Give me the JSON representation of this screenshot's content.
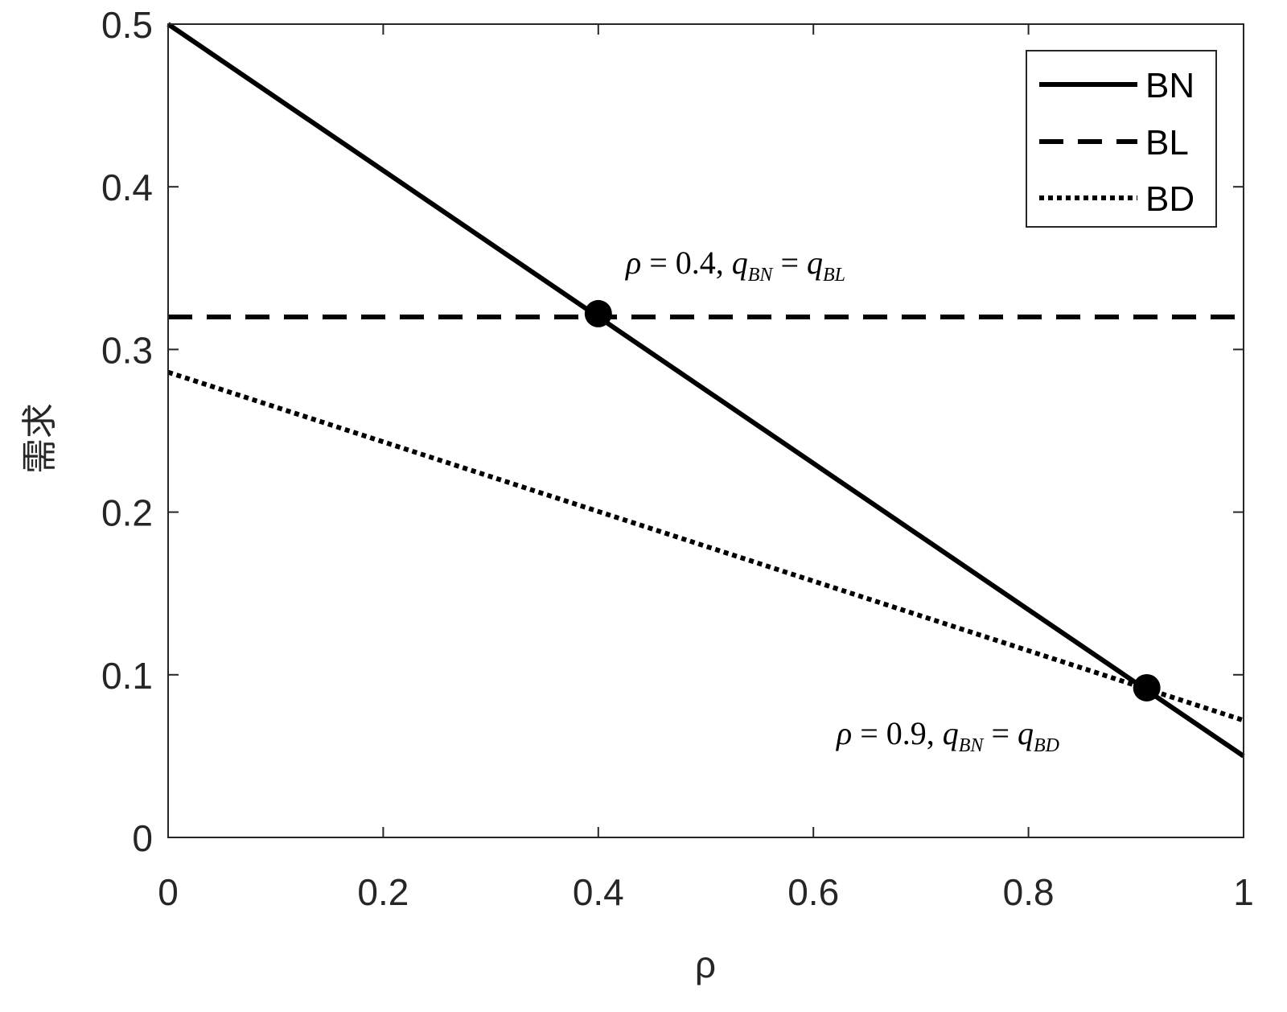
{
  "chart_data": {
    "type": "line",
    "xlabel": "ρ",
    "ylabel": "需求",
    "xlim": [
      0,
      1
    ],
    "ylim": [
      0,
      0.5
    ],
    "xticks": [
      0,
      0.2,
      0.4,
      0.6,
      0.8,
      1
    ],
    "yticks": [
      0,
      0.1,
      0.2,
      0.3,
      0.4,
      0.5
    ],
    "xtick_labels": [
      "0",
      "0.2",
      "0.4",
      "0.6",
      "0.8",
      "1"
    ],
    "ytick_labels": [
      "0",
      "0.1",
      "0.2",
      "0.3",
      "0.4",
      "0.5"
    ],
    "grid": false,
    "legend_position": "top-right",
    "series": [
      {
        "name": "BN",
        "style": "solid",
        "x": [
          0,
          1
        ],
        "y": [
          0.5,
          0.05
        ]
      },
      {
        "name": "BL",
        "style": "dashed",
        "x": [
          0,
          1
        ],
        "y": [
          0.32,
          0.32
        ]
      },
      {
        "name": "BD",
        "style": "dotted",
        "x": [
          0,
          1
        ],
        "y": [
          0.286,
          0.072
        ]
      }
    ],
    "markers": [
      {
        "x": 0.4,
        "y": 0.322
      },
      {
        "x": 0.91,
        "y": 0.092
      }
    ],
    "annotations": [
      {
        "rho": "ρ",
        "eq": " = 0.4, ",
        "q1": "q",
        "sub1": "BN",
        "eq2": " = ",
        "q2": "q",
        "sub2": "BL"
      },
      {
        "rho": "ρ",
        "eq": " = 0.9, ",
        "q1": "q",
        "sub1": "BN",
        "eq2": " = ",
        "q2": "q",
        "sub2": "BD"
      }
    ],
    "colors": {
      "line": "#000000",
      "axis": "#262626"
    }
  }
}
